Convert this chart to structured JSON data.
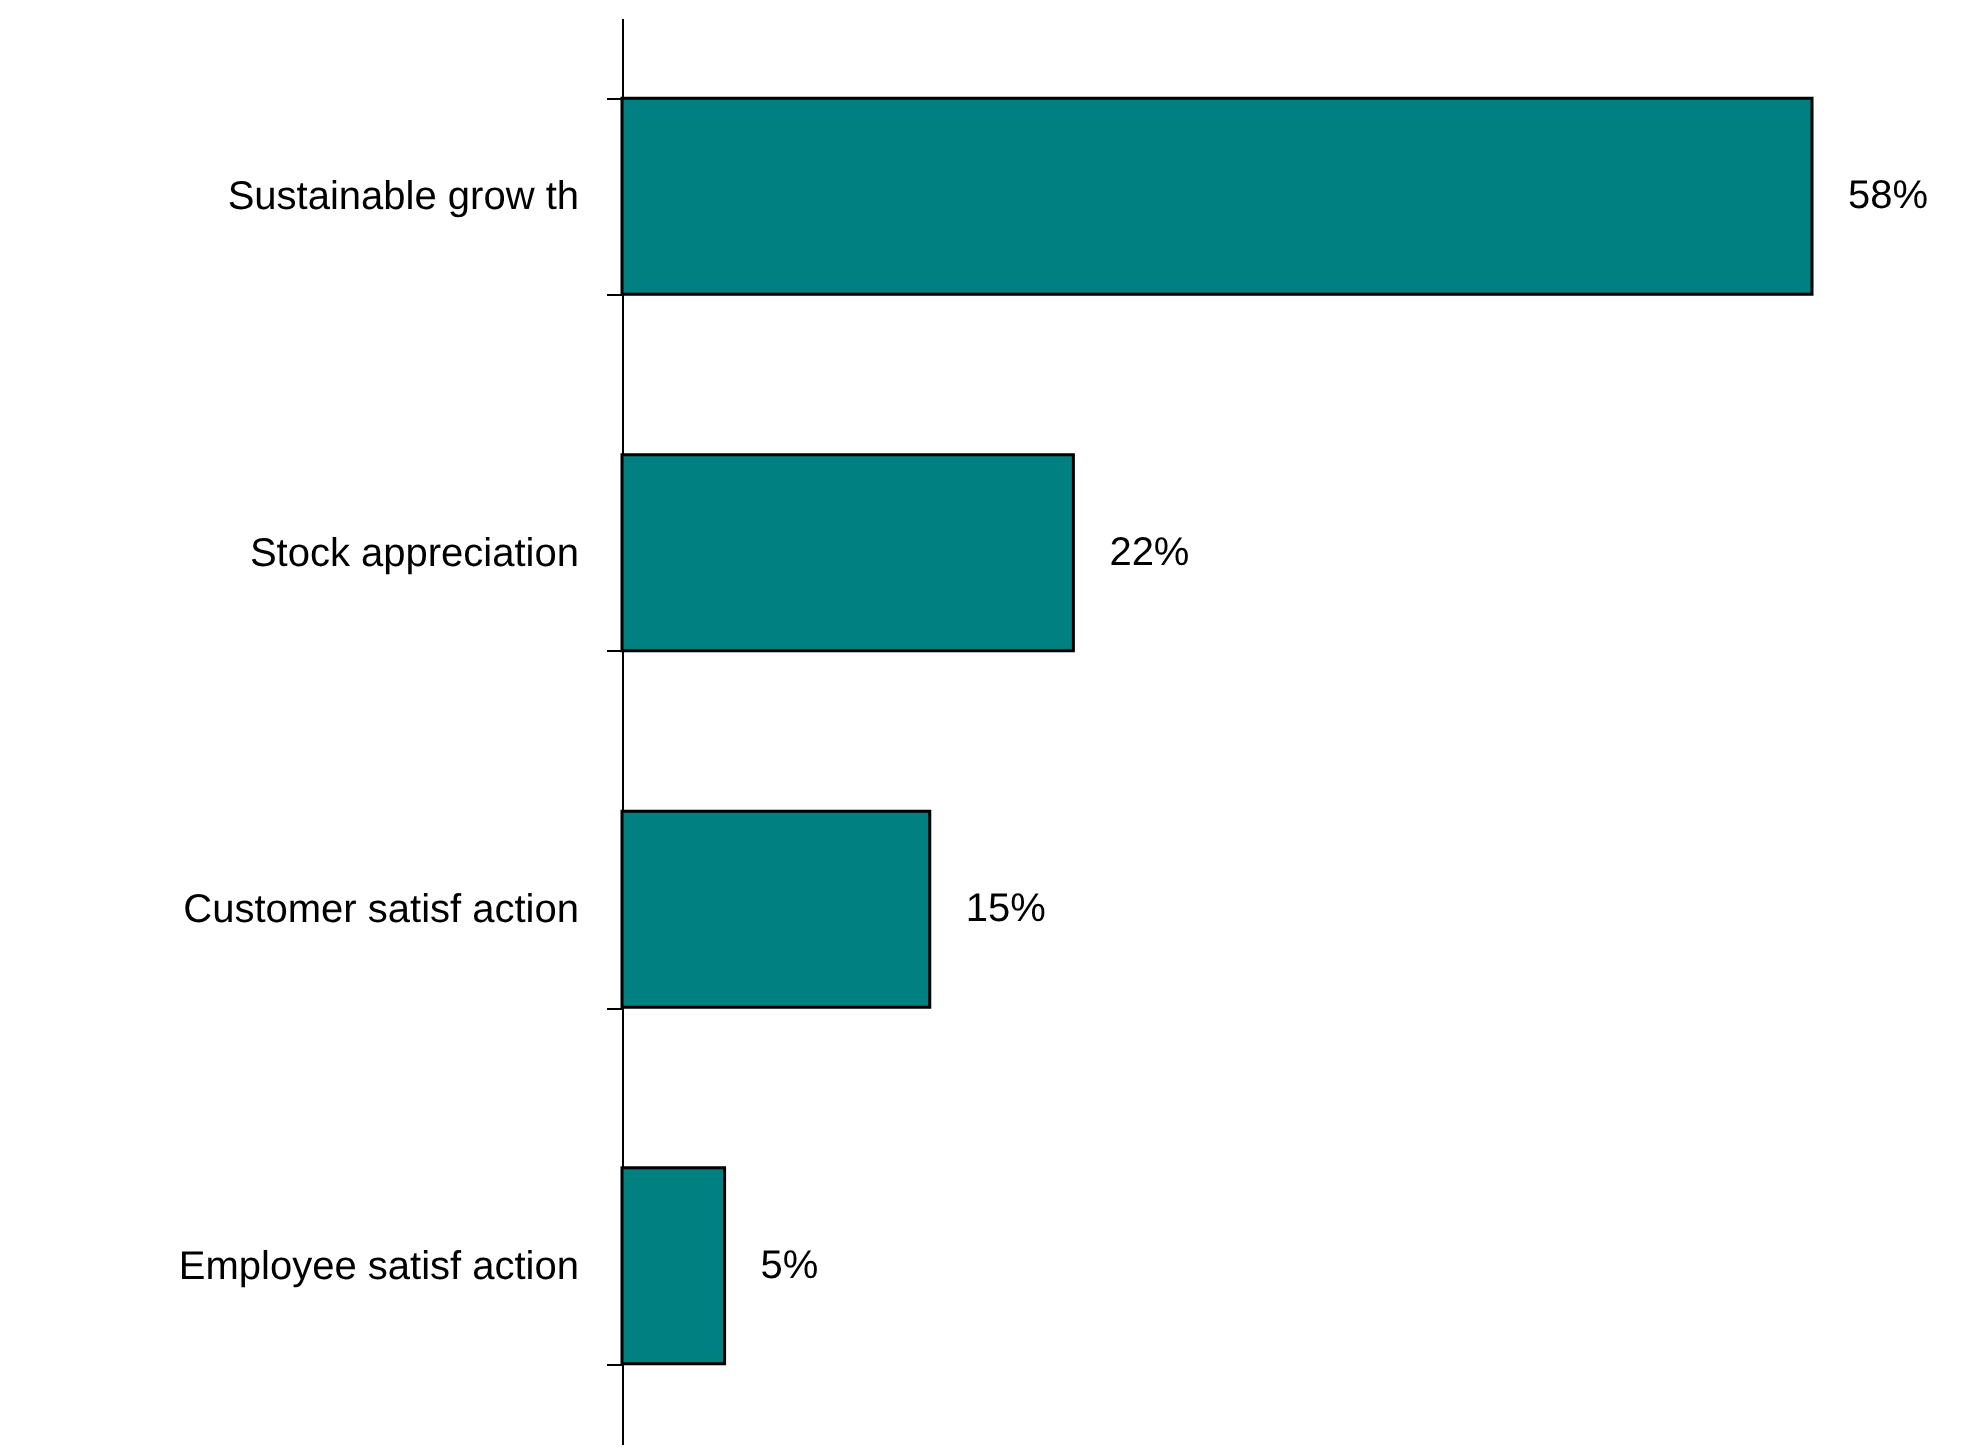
{
  "chart_data": {
    "type": "bar",
    "orientation": "horizontal",
    "categories": [
      "Sustainable grow th",
      "Stock appreciation",
      "Customer satisf action",
      "Employee satisf action"
    ],
    "values": [
      58,
      22,
      15,
      5
    ],
    "value_labels": [
      "58%",
      "22%",
      "15%",
      "5%"
    ],
    "color": "#008080"
  }
}
